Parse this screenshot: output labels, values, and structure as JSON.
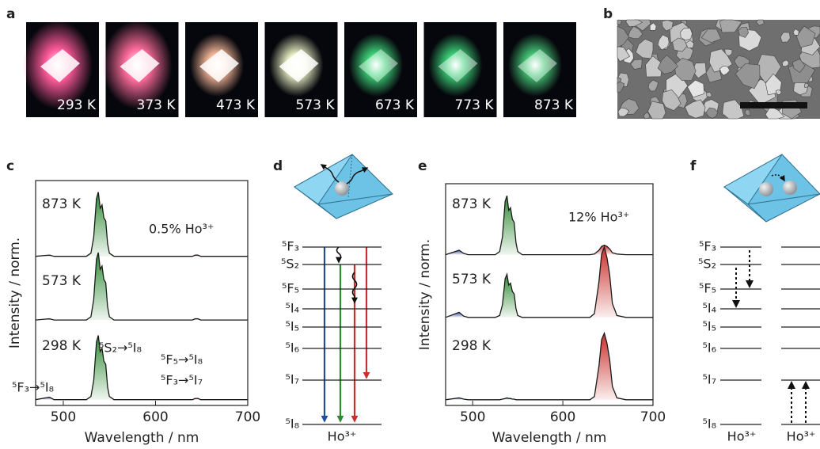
{
  "panel_labels": [
    "a",
    "b",
    "c",
    "d",
    "e",
    "f"
  ],
  "photos": {
    "labels": [
      "293 K",
      "373 K",
      "473 K",
      "573 K",
      "673 K",
      "773 K",
      "873 K"
    ]
  },
  "chart_data": [
    {
      "type": "line",
      "xlabel": "Wavelength / nm",
      "ylabel": "Intensity / norm.",
      "x": [
        470,
        485,
        490,
        495,
        500,
        510,
        520,
        525,
        530,
        533,
        536,
        538,
        540,
        542,
        544,
        546,
        548,
        550,
        555,
        560,
        570,
        580,
        590,
        600,
        610,
        620,
        630,
        635,
        640,
        643,
        646,
        649,
        652,
        655,
        660,
        670,
        680,
        690,
        700
      ],
      "xlim": [
        470,
        700
      ],
      "xticks": [
        500,
        600,
        700
      ],
      "ylim": [
        0,
        3.5
      ],
      "series": [
        {
          "name": "873 K",
          "color": "#1a1a1a",
          "values": [
            2.32,
            2.34,
            2.32,
            2.32,
            2.32,
            2.32,
            2.32,
            2.32,
            2.37,
            2.62,
            3.22,
            3.32,
            3.07,
            3.12,
            2.92,
            2.87,
            2.52,
            2.37,
            2.32,
            2.32,
            2.32,
            2.32,
            2.32,
            2.32,
            2.32,
            2.32,
            2.32,
            2.32,
            2.32,
            2.34,
            2.34,
            2.32,
            2.32,
            2.32,
            2.32,
            2.32,
            2.32,
            2.32,
            2.32
          ]
        },
        {
          "name": "573 K",
          "color": "#1a1a1a",
          "values": [
            1.33,
            1.35,
            1.33,
            1.33,
            1.33,
            1.33,
            1.33,
            1.33,
            1.38,
            1.65,
            2.28,
            2.38,
            2.12,
            2.17,
            1.96,
            1.91,
            1.54,
            1.38,
            1.33,
            1.33,
            1.33,
            1.33,
            1.33,
            1.33,
            1.33,
            1.33,
            1.33,
            1.33,
            1.33,
            1.35,
            1.35,
            1.33,
            1.33,
            1.33,
            1.33,
            1.33,
            1.33,
            1.33,
            1.33
          ]
        },
        {
          "name": "298 K",
          "color": "#1a1a1a",
          "values": [
            0.09,
            0.13,
            0.09,
            0.09,
            0.09,
            0.09,
            0.09,
            0.09,
            0.14,
            0.39,
            0.99,
            1.09,
            0.84,
            0.89,
            0.69,
            0.64,
            0.29,
            0.14,
            0.09,
            0.09,
            0.09,
            0.09,
            0.09,
            0.09,
            0.09,
            0.09,
            0.09,
            0.09,
            0.09,
            0.11,
            0.11,
            0.09,
            0.09,
            0.09,
            0.09,
            0.09,
            0.09,
            0.09,
            0.09
          ]
        }
      ],
      "fills": [
        {
          "color": "#3b5aa5",
          "xlim": [
            470,
            500
          ]
        },
        {
          "color": "#2f8a34",
          "xlim": [
            520,
            565
          ]
        },
        {
          "color": "#c9302c",
          "xlim": [
            620,
            670
          ]
        }
      ],
      "annotations": [
        "0.5% Ho³⁺",
        "⁵F₃→⁵I₈",
        "⁵S₂→⁵I₈",
        "⁵F₅→⁵I₈",
        "⁵F₃→⁵I₇"
      ]
    },
    {
      "type": "line",
      "xlabel": "Wavelength / nm",
      "ylabel": "Intensity / norm.",
      "x": [
        470,
        485,
        490,
        495,
        500,
        510,
        520,
        525,
        530,
        533,
        536,
        538,
        540,
        542,
        544,
        546,
        548,
        550,
        555,
        560,
        570,
        580,
        590,
        600,
        610,
        620,
        630,
        635,
        640,
        643,
        646,
        649,
        652,
        655,
        660,
        670,
        680,
        690,
        700
      ],
      "xlim": [
        470,
        700
      ],
      "xticks": [
        500,
        600,
        700
      ],
      "ylim": [
        0,
        3.5
      ],
      "series": [
        {
          "name": "873 K",
          "color": "#1a1a1a",
          "values": [
            2.38,
            2.45,
            2.4,
            2.38,
            2.38,
            2.38,
            2.38,
            2.38,
            2.43,
            2.66,
            3.22,
            3.31,
            3.08,
            3.12,
            2.94,
            2.89,
            2.57,
            2.43,
            2.38,
            2.38,
            2.38,
            2.38,
            2.38,
            2.38,
            2.38,
            2.38,
            2.38,
            2.39,
            2.45,
            2.51,
            2.53,
            2.51,
            2.47,
            2.41,
            2.39,
            2.38,
            2.38,
            2.38,
            2.38
          ]
        },
        {
          "name": "573 K",
          "color": "#1a1a1a",
          "values": [
            1.39,
            1.47,
            1.41,
            1.39,
            1.39,
            1.39,
            1.39,
            1.39,
            1.42,
            1.59,
            2.0,
            2.07,
            1.9,
            1.93,
            1.8,
            1.76,
            1.53,
            1.42,
            1.39,
            1.39,
            1.39,
            1.39,
            1.39,
            1.39,
            1.39,
            1.39,
            1.39,
            1.45,
            1.95,
            2.39,
            2.5,
            2.33,
            2.06,
            1.61,
            1.42,
            1.39,
            1.39,
            1.39,
            1.39
          ]
        },
        {
          "name": "298 K",
          "color": "#1a1a1a",
          "values": [
            0.09,
            0.12,
            0.1,
            0.09,
            0.09,
            0.09,
            0.09,
            0.09,
            0.09,
            0.1,
            0.11,
            0.12,
            0.11,
            0.11,
            0.1,
            0.1,
            0.09,
            0.09,
            0.09,
            0.09,
            0.09,
            0.09,
            0.09,
            0.09,
            0.09,
            0.09,
            0.09,
            0.14,
            0.62,
            1.04,
            1.14,
            0.98,
            0.72,
            0.3,
            0.12,
            0.09,
            0.09,
            0.09,
            0.09
          ]
        }
      ],
      "fills": [
        {
          "color": "#3b5aa5",
          "xlim": [
            470,
            500
          ]
        },
        {
          "color": "#2f8a34",
          "xlim": [
            520,
            565
          ]
        },
        {
          "color": "#c9302c",
          "xlim": [
            620,
            670
          ]
        }
      ],
      "annotations": [
        "12% Ho³⁺"
      ]
    }
  ],
  "diagrams": [
    {
      "levels": [
        "⁵F₃",
        "⁵S₂",
        "⁵F₅",
        "⁵I₄",
        "⁵I₅",
        "⁵I₆",
        "⁵I₇",
        "⁵I₈"
      ],
      "ions": [
        "Ho³⁺"
      ]
    },
    {
      "levels": [
        "⁵F₃",
        "⁵S₂",
        "⁵F₅",
        "⁵I₄",
        "⁵I₅",
        "⁵I₆",
        "⁵I₇",
        "⁵I₈"
      ],
      "ions": [
        "Ho³⁺",
        "Ho³⁺"
      ]
    }
  ]
}
